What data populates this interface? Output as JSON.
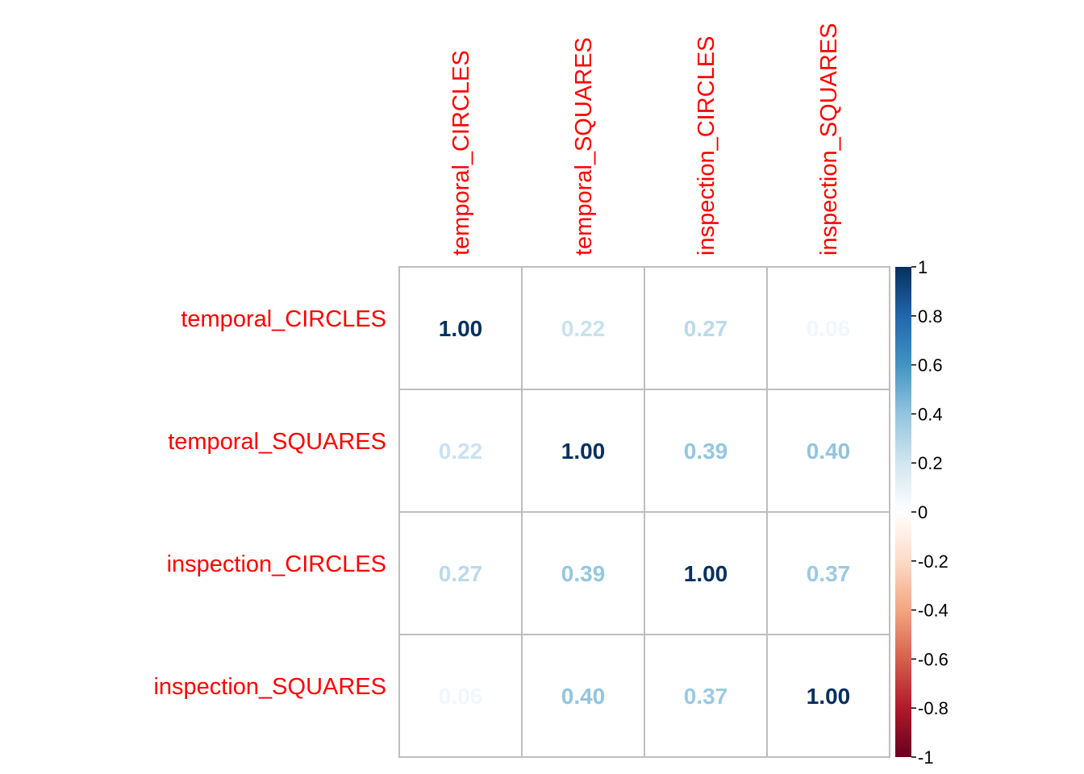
{
  "chart_data": {
    "type": "heatmap",
    "title": "",
    "row_labels": [
      "temporal_CIRCLES",
      "temporal_SQUARES",
      "inspection_CIRCLES",
      "inspection_SQUARES"
    ],
    "col_labels": [
      "temporal_CIRCLES",
      "temporal_SQUARES",
      "inspection_CIRCLES",
      "inspection_SQUARES"
    ],
    "values": [
      [
        1.0,
        0.22,
        0.27,
        0.06
      ],
      [
        0.22,
        1.0,
        0.39,
        0.4
      ],
      [
        0.27,
        0.39,
        1.0,
        0.37
      ],
      [
        0.06,
        0.4,
        0.37,
        1.0
      ]
    ],
    "value_labels": [
      [
        "1.00",
        "0.22",
        "0.27",
        "0.06"
      ],
      [
        "0.22",
        "1.00",
        "0.39",
        "0.40"
      ],
      [
        "0.27",
        "0.39",
        "1.00",
        "0.37"
      ],
      [
        "0.06",
        "0.40",
        "0.37",
        "1.00"
      ]
    ],
    "colorbar": {
      "range": [
        -1,
        1
      ],
      "ticks": [
        "1",
        "0.8",
        "0.6",
        "0.4",
        "0.2",
        "0",
        "-0.2",
        "-0.4",
        "-0.6",
        "-0.8",
        "-1"
      ],
      "palette": [
        "#053061",
        "#2166AC",
        "#4393C3",
        "#92C5DE",
        "#D1E5F0",
        "#FFFFFF",
        "#FDDBC7",
        "#F4A582",
        "#D6604D",
        "#B2182B",
        "#67001F"
      ]
    },
    "label_color": "#FF0000",
    "grid_color": "#BEBEBE"
  }
}
